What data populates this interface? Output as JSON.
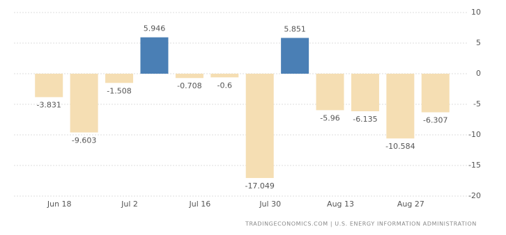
{
  "chart_data": {
    "type": "bar",
    "categories": [
      "Jun 18",
      null,
      "Jul 2",
      null,
      "Jul 16",
      null,
      "Jul 30",
      null,
      "Aug 13",
      null,
      "Aug 27",
      null
    ],
    "values": [
      -3.831,
      -9.603,
      -1.508,
      5.946,
      -0.708,
      -0.6,
      -17.049,
      5.851,
      -5.96,
      -6.135,
      -10.584,
      -6.307
    ],
    "positive_color": "#4a7fb5",
    "negative_color": "#f5deb3",
    "ylim": [
      -20,
      10
    ],
    "yticks": [
      10,
      5,
      0,
      -5,
      -10,
      -15,
      -20
    ],
    "grid": true,
    "source": "TRADINGECONOMICS.COM | U.S. ENERGY INFORMATION ADMINISTRATION"
  }
}
